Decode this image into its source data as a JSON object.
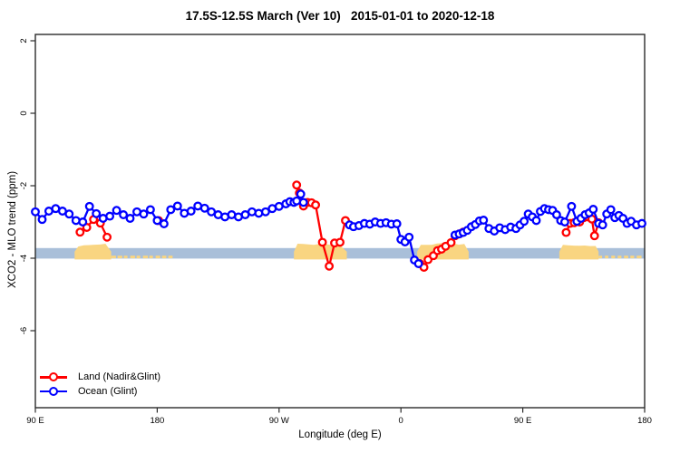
{
  "chart_data": {
    "type": "line",
    "title": "17.5S-12.5S March (Ver 10)   2015-01-01 to 2020-12-18",
    "xlabel": "Longitude (deg E)",
    "ylabel": "XCO2 - MLO trend (ppm)",
    "xlim": [
      90,
      540
    ],
    "ylim": [
      -8.125,
      2.175
    ],
    "grid": false,
    "x_ticks": [
      {
        "lon": 90,
        "label": "90 E"
      },
      {
        "lon": 180,
        "label": "180"
      },
      {
        "lon": 270,
        "label": "90 W"
      },
      {
        "lon": 360,
        "label": "0"
      },
      {
        "lon": 450,
        "label": "90 E"
      },
      {
        "lon": 540,
        "label": "180"
      }
    ],
    "y_ticks": [
      {
        "value": 2,
        "label": "2"
      },
      {
        "value": 0,
        "label": "0"
      },
      {
        "value": -2,
        "label": "-2"
      },
      {
        "value": -4,
        "label": "-4"
      },
      {
        "value": -6,
        "label": "-6"
      }
    ],
    "reference_band": {
      "value_top": -3.72,
      "value_bottom": -4.01,
      "color": "#A9BFD9"
    },
    "land_patches": {
      "color": "#F9D581",
      "regions": [
        {
          "from_lon": 119,
          "to_lon": 146,
          "kind": "blob"
        },
        {
          "from_lon": 146,
          "to_lon": 191,
          "kind": "strip"
        },
        {
          "from_lon": 281,
          "to_lon": 320,
          "kind": "blob"
        },
        {
          "from_lon": 372,
          "to_lon": 410,
          "kind": "blob"
        },
        {
          "from_lon": 477,
          "to_lon": 506,
          "kind": "blob"
        },
        {
          "from_lon": 506,
          "to_lon": 538,
          "kind": "strip"
        }
      ]
    },
    "legend": {
      "position": "bottom-left",
      "items": [
        {
          "label": "Land (Nadir&Glint)",
          "color": "#FF0000"
        },
        {
          "label": "Ocean (Glint)",
          "color": "#0000FF"
        }
      ]
    },
    "series": [
      {
        "name": "Land (Nadir&Glint)",
        "color": "#FF0000",
        "marker": "open-circle",
        "segments": [
          [
            [
              123,
              -3.28
            ],
            [
              128,
              -3.15
            ],
            [
              133,
              -2.93
            ],
            [
              138,
              -3.03
            ],
            [
              143,
              -3.42
            ]
          ],
          [
            [
              181,
              -2.96
            ]
          ],
          [
            [
              283,
              -1.98
            ],
            [
              285,
              -2.2
            ],
            [
              288,
              -2.56
            ],
            [
              291,
              -2.46
            ],
            [
              294,
              -2.47
            ],
            [
              297,
              -2.53
            ],
            [
              302,
              -3.56
            ],
            [
              307,
              -4.22
            ],
            [
              311,
              -3.58
            ],
            [
              315,
              -3.56
            ],
            [
              319,
              -2.96
            ]
          ],
          [
            [
              374,
              -4.15
            ],
            [
              377,
              -4.25
            ],
            [
              380,
              -4.04
            ],
            [
              384,
              -3.93
            ],
            [
              387,
              -3.79
            ],
            [
              390,
              -3.75
            ],
            [
              393,
              -3.67
            ],
            [
              397,
              -3.57
            ],
            [
              400,
              -3.38
            ],
            [
              403,
              -3.33
            ],
            [
              406,
              -3.28
            ]
          ],
          [
            [
              482,
              -3.29
            ],
            [
              485,
              -3.04
            ],
            [
              488,
              -3.02
            ],
            [
              492,
              -3.0
            ],
            [
              495,
              -2.88
            ],
            [
              498,
              -2.86
            ],
            [
              501,
              -2.92
            ],
            [
              503,
              -3.38
            ],
            [
              506,
              -3.02
            ]
          ]
        ]
      },
      {
        "name": "Ocean (Glint)",
        "color": "#0000FF",
        "marker": "open-circle",
        "segments": [
          [
            [
              90,
              -2.72
            ],
            [
              95,
              -2.93
            ],
            [
              100,
              -2.7
            ],
            [
              105,
              -2.63
            ],
            [
              110,
              -2.7
            ],
            [
              115,
              -2.78
            ],
            [
              120,
              -2.96
            ],
            [
              125,
              -3.0
            ],
            [
              130,
              -2.57
            ],
            [
              135,
              -2.77
            ],
            [
              140,
              -2.9
            ],
            [
              145,
              -2.84
            ],
            [
              150,
              -2.68
            ],
            [
              155,
              -2.8
            ],
            [
              160,
              -2.9
            ],
            [
              165,
              -2.72
            ],
            [
              170,
              -2.78
            ],
            [
              175,
              -2.66
            ],
            [
              180,
              -2.96
            ],
            [
              185,
              -3.05
            ],
            [
              190,
              -2.66
            ],
            [
              195,
              -2.56
            ],
            [
              200,
              -2.76
            ],
            [
              205,
              -2.7
            ],
            [
              210,
              -2.56
            ],
            [
              215,
              -2.62
            ],
            [
              220,
              -2.72
            ],
            [
              225,
              -2.8
            ],
            [
              230,
              -2.86
            ],
            [
              235,
              -2.8
            ],
            [
              240,
              -2.86
            ],
            [
              245,
              -2.8
            ],
            [
              250,
              -2.72
            ],
            [
              255,
              -2.76
            ],
            [
              260,
              -2.72
            ],
            [
              265,
              -2.63
            ],
            [
              270,
              -2.57
            ],
            [
              275,
              -2.5
            ],
            [
              278,
              -2.44
            ],
            [
              281,
              -2.46
            ],
            [
              283,
              -2.42
            ],
            [
              286,
              -2.23
            ],
            [
              288,
              -2.46
            ]
          ],
          [
            [
              322,
              -3.08
            ],
            [
              325,
              -3.13
            ],
            [
              329,
              -3.1
            ],
            [
              333,
              -3.04
            ],
            [
              337,
              -3.06
            ],
            [
              341,
              -3.0
            ],
            [
              345,
              -3.04
            ],
            [
              349,
              -3.02
            ],
            [
              353,
              -3.06
            ],
            [
              357,
              -3.05
            ],
            [
              360,
              -3.48
            ],
            [
              363,
              -3.55
            ],
            [
              366,
              -3.42
            ],
            [
              370,
              -4.05
            ],
            [
              373,
              -4.15
            ]
          ],
          [
            [
              400,
              -3.36
            ],
            [
              403,
              -3.33
            ],
            [
              406,
              -3.29
            ],
            [
              409,
              -3.23
            ],
            [
              412,
              -3.13
            ],
            [
              415,
              -3.07
            ],
            [
              418,
              -2.97
            ],
            [
              421,
              -2.95
            ],
            [
              425,
              -3.18
            ],
            [
              429,
              -3.25
            ],
            [
              433,
              -3.16
            ],
            [
              437,
              -3.21
            ],
            [
              441,
              -3.14
            ],
            [
              445,
              -3.18
            ],
            [
              448,
              -3.08
            ],
            [
              451,
              -2.98
            ],
            [
              454,
              -2.78
            ],
            [
              457,
              -2.86
            ],
            [
              460,
              -2.96
            ],
            [
              463,
              -2.71
            ],
            [
              466,
              -2.63
            ],
            [
              469,
              -2.66
            ],
            [
              472,
              -2.68
            ],
            [
              475,
              -2.8
            ],
            [
              478,
              -2.96
            ],
            [
              481,
              -3.0
            ],
            [
              486,
              -2.57
            ],
            [
              490,
              -2.98
            ],
            [
              493,
              -2.9
            ],
            [
              496,
              -2.8
            ],
            [
              499,
              -2.75
            ],
            [
              502,
              -2.65
            ],
            [
              506,
              -3.04
            ],
            [
              509,
              -3.08
            ],
            [
              512,
              -2.78
            ],
            [
              515,
              -2.66
            ],
            [
              518,
              -2.88
            ],
            [
              521,
              -2.82
            ],
            [
              524,
              -2.9
            ],
            [
              527,
              -3.04
            ],
            [
              530,
              -2.98
            ],
            [
              534,
              -3.08
            ],
            [
              538,
              -3.04
            ]
          ]
        ]
      }
    ]
  }
}
